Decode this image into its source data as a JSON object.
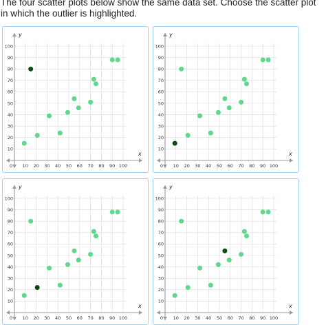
{
  "question": "The four scatter plots below show the same data set. Choose the scatter plot in which the outlier is highlighted.",
  "colors": {
    "point": "#5fd88e",
    "highlight": "#0a4d0a",
    "axis": "#999999",
    "grid": "#d9d9d9",
    "border": "#9ed3ef"
  },
  "axes": {
    "x_label": "x",
    "y_label": "y",
    "origin_label": "0",
    "x_ticks": [
      "10",
      "20",
      "30",
      "40",
      "50",
      "60",
      "70",
      "80",
      "90",
      "100"
    ],
    "y_ticks": [
      "10",
      "20",
      "30",
      "40",
      "50",
      "60",
      "70",
      "80",
      "90",
      "100"
    ],
    "x_range": [
      0,
      100
    ],
    "y_range": [
      0,
      100
    ]
  },
  "chart_data": {
    "type": "scatter",
    "points": [
      {
        "x": 9,
        "y": 15
      },
      {
        "x": 15,
        "y": 80
      },
      {
        "x": 21,
        "y": 22
      },
      {
        "x": 32,
        "y": 39
      },
      {
        "x": 42,
        "y": 24
      },
      {
        "x": 49,
        "y": 42
      },
      {
        "x": 55,
        "y": 54
      },
      {
        "x": 59,
        "y": 46
      },
      {
        "x": 70,
        "y": 51
      },
      {
        "x": 73,
        "y": 71
      },
      {
        "x": 75,
        "y": 67
      },
      {
        "x": 90,
        "y": 88
      },
      {
        "x": 95,
        "y": 88
      }
    ],
    "xlim": [
      0,
      100
    ],
    "ylim": [
      0,
      100
    ],
    "grid": true
  },
  "options": [
    {
      "id": "A",
      "highlight_index": 1
    },
    {
      "id": "B",
      "highlight_index": 0
    },
    {
      "id": "C",
      "highlight_index": 2
    },
    {
      "id": "D",
      "highlight_index": 6
    }
  ]
}
